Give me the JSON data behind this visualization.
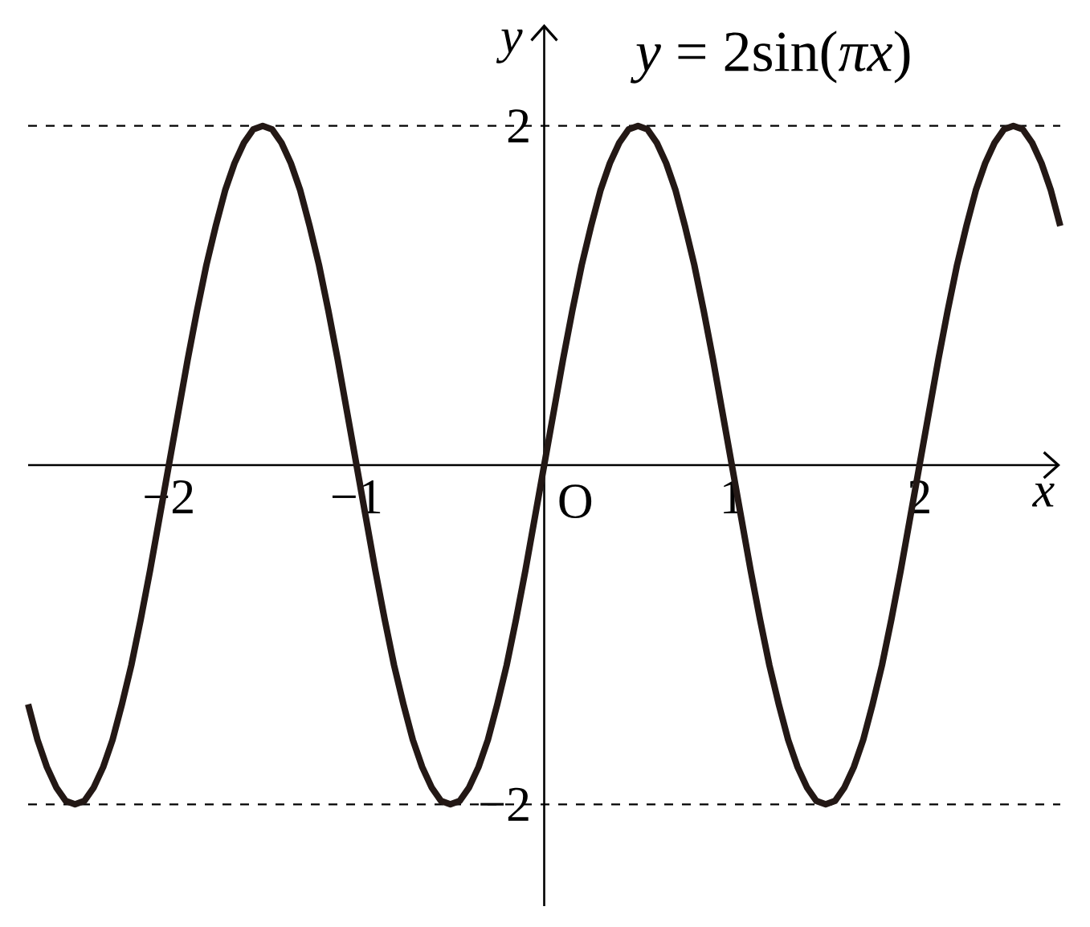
{
  "chart_data": {
    "type": "line",
    "xlabel": "x",
    "ylabel": "y",
    "xlim": [
      -2.75,
      2.75
    ],
    "ylim": [
      -2.6,
      2.6
    ],
    "xticks": [
      {
        "value": -2,
        "label": "−2"
      },
      {
        "value": -1,
        "label": "−1"
      },
      1,
      2
    ],
    "yticks": [
      {
        "value": -2,
        "label": "−2"
      },
      2
    ],
    "marker": "none",
    "annotations": [
      {
        "text": "O",
        "x": 0,
        "y": 0
      }
    ],
    "ref_lines": [
      {
        "axis": "y",
        "value": 2,
        "color": "#000000",
        "line_style": "dashed"
      },
      {
        "axis": "y",
        "value": -2,
        "color": "#000000",
        "line_style": "dashed"
      }
    ],
    "series": [
      {
        "name": "*y* = 2sin(*πx*)",
        "color": "#231815",
        "line_style": "solid",
        "x": [
          -2.75,
          -2.7,
          -2.65,
          -2.6,
          -2.55,
          -2.5,
          -2.45,
          -2.4,
          -2.35,
          -2.3,
          -2.25,
          -2.2,
          -2.15,
          -2.1,
          -2.05,
          -2,
          -1.95,
          -1.9,
          -1.85,
          -1.8,
          -1.75,
          -1.7,
          -1.65,
          -1.6,
          -1.55,
          -1.5,
          -1.45,
          -1.4,
          -1.35,
          -1.3,
          -1.25,
          -1.2,
          -1.15,
          -1.1,
          -1.05,
          -1,
          -0.95,
          -0.9,
          -0.85,
          -0.8,
          -0.75,
          -0.7,
          -0.65,
          -0.6,
          -0.55,
          -0.5,
          -0.45,
          -0.4,
          -0.35,
          -0.3,
          -0.25,
          -0.2,
          -0.15,
          -0.1,
          -0.05,
          0,
          0.05,
          0.1,
          0.15,
          0.2,
          0.25,
          0.3,
          0.35,
          0.4,
          0.45,
          0.5,
          0.55,
          0.6,
          0.65,
          0.7,
          0.75,
          0.8,
          0.85,
          0.9,
          0.95,
          1,
          1.05,
          1.1,
          1.15,
          1.2,
          1.25,
          1.3,
          1.35,
          1.4,
          1.45,
          1.5,
          1.55,
          1.6,
          1.65,
          1.7,
          1.75,
          1.8,
          1.85,
          1.9,
          1.95,
          2,
          2.05,
          2.1,
          2.15,
          2.2,
          2.25,
          2.3,
          2.35,
          2.4,
          2.45,
          2.5,
          2.55,
          2.6,
          2.65,
          2.7,
          2.75
        ],
        "values": [
          -1.41,
          -1.62,
          -1.78,
          -1.9,
          -1.98,
          -2,
          -1.98,
          -1.9,
          -1.78,
          -1.62,
          -1.41,
          -1.18,
          -0.91,
          -0.62,
          -0.31,
          0,
          0.31,
          0.62,
          0.91,
          1.18,
          1.41,
          1.62,
          1.78,
          1.9,
          1.98,
          2,
          1.98,
          1.9,
          1.78,
          1.62,
          1.41,
          1.18,
          0.91,
          0.62,
          0.31,
          0,
          -0.31,
          -0.62,
          -0.91,
          -1.18,
          -1.41,
          -1.62,
          -1.78,
          -1.9,
          -1.98,
          -2,
          -1.98,
          -1.9,
          -1.78,
          -1.62,
          -1.41,
          -1.18,
          -0.91,
          -0.62,
          -0.31,
          0,
          0.31,
          0.62,
          0.91,
          1.18,
          1.41,
          1.62,
          1.78,
          1.9,
          1.98,
          2,
          1.98,
          1.9,
          1.78,
          1.62,
          1.41,
          1.18,
          0.91,
          0.62,
          0.31,
          0,
          -0.31,
          -0.62,
          -0.91,
          -1.18,
          -1.41,
          -1.62,
          -1.78,
          -1.9,
          -1.98,
          -2,
          -1.98,
          -1.9,
          -1.78,
          -1.62,
          -1.41,
          -1.18,
          -0.91,
          -0.62,
          -0.31,
          0,
          0.31,
          0.62,
          0.91,
          1.18,
          1.41,
          1.62,
          1.78,
          1.9,
          1.98,
          2,
          1.98,
          1.9,
          1.78,
          1.62,
          1.41
        ]
      }
    ]
  }
}
